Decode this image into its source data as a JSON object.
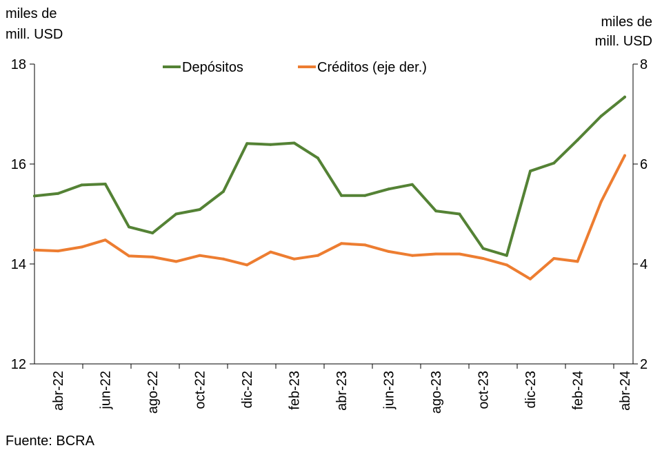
{
  "chart_data": {
    "type": "line",
    "title": "",
    "left_axis_label_lines": [
      "miles de",
      "mill. USD"
    ],
    "right_axis_label_lines": [
      "miles de",
      "mill. USD"
    ],
    "source": "Fuente: BCRA",
    "x_tick_labels": [
      "abr-22",
      "jun-22",
      "ago-22",
      "oct-22",
      "dic-22",
      "feb-23",
      "abr-23",
      "jun-23",
      "ago-23",
      "oct-23",
      "dic-23",
      "feb-24",
      "abr-24"
    ],
    "x": [
      "mar-22",
      "abr-22",
      "may-22",
      "jun-22",
      "jul-22",
      "ago-22",
      "sep-22",
      "oct-22",
      "nov-22",
      "dic-22",
      "ene-23",
      "feb-23",
      "mar-23",
      "abr-23",
      "may-23",
      "jun-23",
      "jul-23",
      "ago-23",
      "sep-23",
      "oct-23",
      "nov-23",
      "dic-23",
      "ene-24",
      "feb-24",
      "mar-24",
      "abr-24"
    ],
    "ylim_left": [
      12,
      18
    ],
    "yticks_left": [
      "12",
      "14",
      "16",
      "18"
    ],
    "ylim_right": [
      2,
      8
    ],
    "yticks_right": [
      "2",
      "4",
      "6",
      "8"
    ],
    "grid": false,
    "legend_position": "top-center",
    "series": [
      {
        "name": "Depósitos",
        "axis": "left",
        "color": "#548235",
        "values": [
          15.36,
          15.41,
          15.58,
          15.6,
          14.74,
          14.62,
          15.0,
          15.09,
          15.45,
          16.41,
          16.39,
          16.42,
          16.12,
          15.37,
          15.37,
          15.5,
          15.59,
          15.06,
          15.0,
          14.31,
          14.17,
          15.86,
          16.02,
          16.48,
          16.96,
          17.34
        ]
      },
      {
        "name": "Créditos (eje der.)",
        "axis": "right",
        "color": "#ED7D31",
        "values": [
          4.28,
          4.26,
          4.34,
          4.48,
          4.16,
          4.14,
          4.05,
          4.17,
          4.1,
          3.98,
          4.24,
          4.1,
          4.17,
          4.41,
          4.38,
          4.25,
          4.17,
          4.2,
          4.2,
          4.11,
          3.98,
          3.7,
          4.11,
          4.05,
          5.25,
          6.17
        ]
      }
    ]
  }
}
